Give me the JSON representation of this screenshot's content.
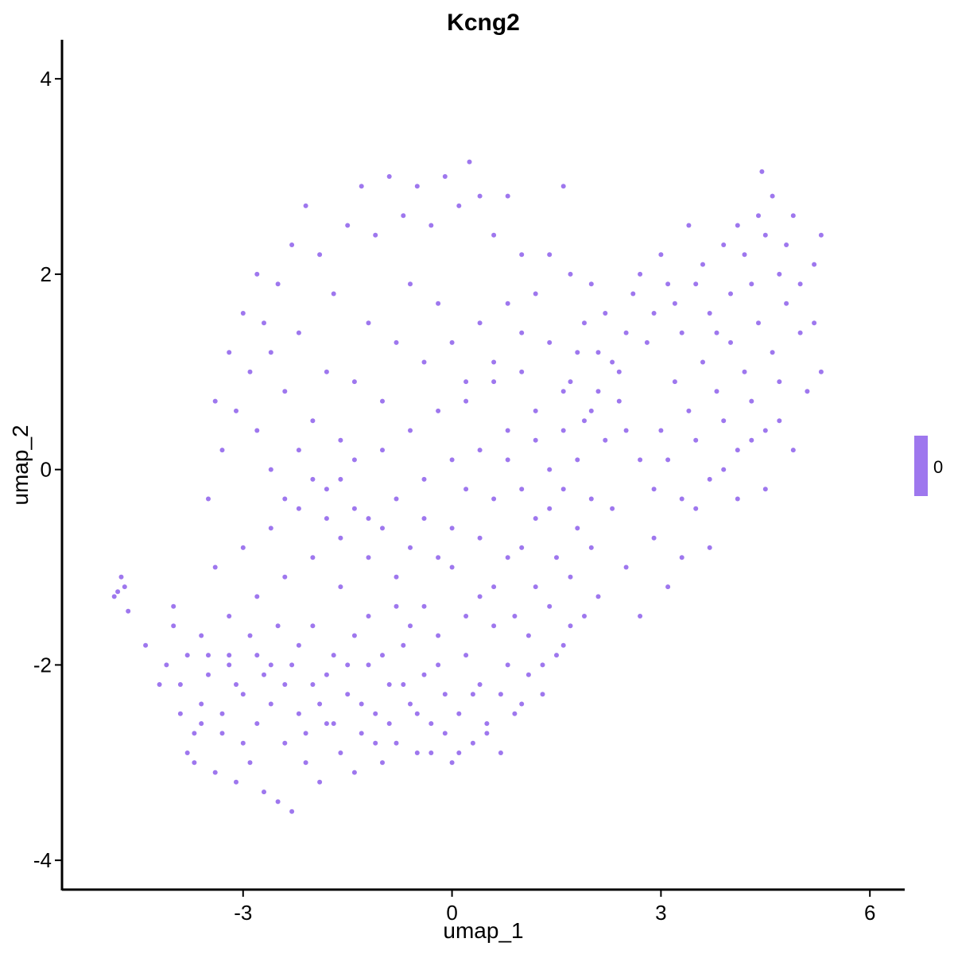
{
  "chart_data": {
    "type": "scatter",
    "title": "Kcng2",
    "xlabel": "umap_1",
    "ylabel": "umap_2",
    "xlim": [
      -5.6,
      6.5
    ],
    "ylim": [
      -4.3,
      4.4
    ],
    "x_ticks": [
      -3,
      0,
      3,
      6
    ],
    "y_ticks": [
      4,
      2,
      0,
      -2,
      -4
    ],
    "x_tick_labels": [
      "-3",
      "0",
      "3",
      "6"
    ],
    "y_tick_labels": [
      "4",
      "2",
      "0",
      "-2",
      "-4"
    ],
    "grid": false,
    "point_color": "#9e77ee",
    "legend": {
      "placement": "right",
      "labels": [
        "0"
      ],
      "color": "#9e77ee"
    },
    "series": [
      {
        "values": [
          [
            -4.8,
            -1.25
          ],
          [
            -4.75,
            -1.1
          ],
          [
            -4.7,
            -1.2
          ],
          [
            -4.65,
            -1.45
          ],
          [
            -4.85,
            -1.3
          ],
          [
            -4.4,
            -1.8
          ],
          [
            -4.2,
            -2.2
          ],
          [
            -4.1,
            -2.0
          ],
          [
            -4.0,
            -1.6
          ],
          [
            -3.9,
            -2.5
          ],
          [
            -3.8,
            -2.9
          ],
          [
            -3.7,
            -3.0
          ],
          [
            -3.6,
            -2.4
          ],
          [
            -3.5,
            -2.1
          ],
          [
            -3.4,
            -3.1
          ],
          [
            -3.3,
            -2.7
          ],
          [
            -3.2,
            -1.9
          ],
          [
            -3.1,
            -3.2
          ],
          [
            -3.0,
            -2.3
          ],
          [
            -2.9,
            -3.0
          ],
          [
            -2.8,
            -2.6
          ],
          [
            -2.7,
            -3.3
          ],
          [
            -2.6,
            -2.0
          ],
          [
            -2.5,
            -3.4
          ],
          [
            -2.4,
            -2.8
          ],
          [
            -2.3,
            -3.5
          ],
          [
            -2.2,
            -2.5
          ],
          [
            -2.1,
            -3.0
          ],
          [
            -2.0,
            -2.2
          ],
          [
            -1.9,
            -3.2
          ],
          [
            -1.8,
            -2.6
          ],
          [
            -1.7,
            -1.9
          ],
          [
            -1.6,
            -2.9
          ],
          [
            -1.5,
            -2.3
          ],
          [
            -1.4,
            -3.1
          ],
          [
            -1.3,
            -2.7
          ],
          [
            -1.2,
            -2.0
          ],
          [
            -1.1,
            -2.5
          ],
          [
            -1.0,
            -3.0
          ],
          [
            -0.9,
            -2.2
          ],
          [
            -0.8,
            -2.8
          ],
          [
            -0.7,
            -1.8
          ],
          [
            -0.6,
            -2.4
          ],
          [
            -0.5,
            -2.9
          ],
          [
            -0.4,
            -2.1
          ],
          [
            -0.3,
            -2.6
          ],
          [
            -0.2,
            -1.7
          ],
          [
            -0.1,
            -2.3
          ],
          [
            0.0,
            -3.0
          ],
          [
            0.1,
            -2.5
          ],
          [
            0.2,
            -1.9
          ],
          [
            0.3,
            -2.8
          ],
          [
            0.4,
            -2.2
          ],
          [
            0.5,
            -2.7
          ],
          [
            0.6,
            -1.6
          ],
          [
            0.7,
            -2.3
          ],
          [
            0.8,
            -2.0
          ],
          [
            0.9,
            -1.5
          ],
          [
            1.0,
            -2.4
          ],
          [
            1.1,
            -1.7
          ],
          [
            1.2,
            -1.2
          ],
          [
            1.3,
            -2.0
          ],
          [
            1.4,
            -1.4
          ],
          [
            1.5,
            -0.9
          ],
          [
            1.6,
            -1.8
          ],
          [
            1.7,
            -1.1
          ],
          [
            1.8,
            -0.6
          ],
          [
            1.9,
            -1.5
          ],
          [
            2.0,
            -0.8
          ],
          [
            2.1,
            -1.3
          ],
          [
            2.3,
            -0.4
          ],
          [
            2.5,
            -1.0
          ],
          [
            2.7,
            -1.5
          ],
          [
            2.9,
            -0.7
          ],
          [
            3.1,
            -1.2
          ],
          [
            3.3,
            -0.9
          ],
          [
            3.5,
            -0.4
          ],
          [
            3.7,
            -0.8
          ],
          [
            3.9,
            0.0
          ],
          [
            4.1,
            -0.3
          ],
          [
            4.3,
            0.3
          ],
          [
            4.5,
            -0.2
          ],
          [
            4.7,
            0.5
          ],
          [
            4.9,
            0.2
          ],
          [
            5.1,
            0.8
          ],
          [
            5.3,
            1.0
          ],
          [
            5.2,
            1.5
          ],
          [
            5.0,
            1.9
          ],
          [
            4.8,
            2.3
          ],
          [
            4.6,
            2.8
          ],
          [
            4.45,
            3.05
          ],
          [
            4.4,
            2.6
          ],
          [
            4.2,
            2.2
          ],
          [
            4.0,
            1.8
          ],
          [
            3.8,
            1.4
          ],
          [
            3.6,
            2.1
          ],
          [
            3.4,
            2.5
          ],
          [
            3.2,
            1.7
          ],
          [
            3.0,
            2.2
          ],
          [
            2.8,
            1.3
          ],
          [
            2.6,
            1.8
          ],
          [
            2.4,
            1.0
          ],
          [
            2.2,
            1.6
          ],
          [
            2.0,
            1.9
          ],
          [
            1.8,
            1.2
          ],
          [
            1.6,
            0.8
          ],
          [
            1.4,
            1.3
          ],
          [
            1.2,
            0.6
          ],
          [
            1.0,
            1.0
          ],
          [
            0.8,
            0.4
          ],
          [
            0.6,
            0.9
          ],
          [
            0.4,
            0.2
          ],
          [
            0.2,
            0.7
          ],
          [
            0.0,
            0.1
          ],
          [
            -0.2,
            0.6
          ],
          [
            -0.4,
            -0.1
          ],
          [
            -0.6,
            0.4
          ],
          [
            -0.8,
            -0.3
          ],
          [
            -1.0,
            0.2
          ],
          [
            -1.2,
            -0.5
          ],
          [
            -1.4,
            0.1
          ],
          [
            -1.6,
            -0.7
          ],
          [
            -1.8,
            -0.2
          ],
          [
            -2.0,
            -0.9
          ],
          [
            -2.2,
            -0.4
          ],
          [
            -2.4,
            -1.1
          ],
          [
            -2.6,
            -0.6
          ],
          [
            -2.8,
            -1.3
          ],
          [
            -3.0,
            -0.8
          ],
          [
            -3.2,
            -1.5
          ],
          [
            -3.4,
            -1.0
          ],
          [
            -3.6,
            -1.7
          ],
          [
            -3.5,
            -0.3
          ],
          [
            -3.3,
            0.2
          ],
          [
            -3.1,
            0.6
          ],
          [
            -2.9,
            1.0
          ],
          [
            -2.7,
            1.5
          ],
          [
            -2.5,
            1.9
          ],
          [
            -2.3,
            2.3
          ],
          [
            -2.1,
            2.7
          ],
          [
            -1.9,
            2.2
          ],
          [
            -1.7,
            1.8
          ],
          [
            -1.5,
            2.5
          ],
          [
            -1.3,
            2.9
          ],
          [
            -1.1,
            2.4
          ],
          [
            -0.9,
            3.0
          ],
          [
            -0.7,
            2.6
          ],
          [
            -0.5,
            2.9
          ],
          [
            -0.3,
            2.5
          ],
          [
            -0.1,
            3.0
          ],
          [
            0.1,
            2.7
          ],
          [
            0.25,
            3.15
          ],
          [
            0.4,
            2.8
          ],
          [
            0.6,
            2.4
          ],
          [
            0.8,
            2.8
          ],
          [
            1.0,
            2.2
          ],
          [
            1.2,
            1.8
          ],
          [
            1.4,
            2.2
          ],
          [
            1.6,
            2.9
          ],
          [
            1.7,
            2.0
          ],
          [
            1.9,
            1.5
          ],
          [
            2.1,
            1.2
          ],
          [
            -2.8,
            2.0
          ],
          [
            -2.6,
            1.2
          ],
          [
            -2.4,
            0.8
          ],
          [
            -2.2,
            1.4
          ],
          [
            -2.0,
            0.5
          ],
          [
            -1.8,
            1.0
          ],
          [
            -1.6,
            0.3
          ],
          [
            -1.4,
            0.9
          ],
          [
            -1.2,
            1.5
          ],
          [
            -1.0,
            0.7
          ],
          [
            -0.8,
            1.3
          ],
          [
            -0.6,
            1.9
          ],
          [
            -0.4,
            1.1
          ],
          [
            -0.2,
            1.7
          ],
          [
            0.0,
            1.3
          ],
          [
            0.2,
            0.9
          ],
          [
            0.4,
            1.5
          ],
          [
            0.6,
            1.1
          ],
          [
            0.8,
            1.7
          ],
          [
            1.0,
            1.4
          ],
          [
            -3.2,
            -2.0
          ],
          [
            -2.8,
            -1.9
          ],
          [
            -2.4,
            -2.2
          ],
          [
            -2.0,
            -1.6
          ],
          [
            -1.6,
            -1.2
          ],
          [
            -1.2,
            -1.5
          ],
          [
            -0.8,
            -1.1
          ],
          [
            -0.4,
            -1.4
          ],
          [
            0.0,
            -1.0
          ],
          [
            0.4,
            -1.3
          ],
          [
            0.8,
            -0.9
          ],
          [
            1.2,
            -0.5
          ],
          [
            1.6,
            -0.2
          ],
          [
            2.0,
            -0.3
          ],
          [
            -3.8,
            -1.9
          ],
          [
            -3.6,
            -2.6
          ],
          [
            -3.0,
            -2.8
          ],
          [
            -2.6,
            -2.4
          ],
          [
            -2.2,
            -1.8
          ],
          [
            -1.8,
            -2.1
          ],
          [
            -1.4,
            -1.7
          ],
          [
            -1.0,
            -1.9
          ],
          [
            -0.6,
            -1.6
          ],
          [
            -0.2,
            -2.0
          ],
          [
            0.2,
            -1.5
          ],
          [
            0.6,
            -1.2
          ],
          [
            1.0,
            -0.8
          ],
          [
            1.4,
            -0.4
          ],
          [
            3.0,
            0.4
          ],
          [
            3.2,
            0.9
          ],
          [
            3.4,
            0.6
          ],
          [
            3.6,
            1.1
          ],
          [
            3.8,
            0.8
          ],
          [
            4.0,
            1.3
          ],
          [
            4.2,
            1.0
          ],
          [
            4.4,
            1.5
          ],
          [
            4.6,
            1.2
          ],
          [
            4.8,
            1.7
          ],
          [
            5.0,
            1.4
          ],
          [
            5.2,
            2.1
          ],
          [
            5.3,
            2.4
          ],
          [
            4.9,
            2.6
          ],
          [
            4.7,
            2.0
          ],
          [
            4.5,
            2.4
          ],
          [
            4.3,
            1.9
          ],
          [
            4.1,
            2.5
          ],
          [
            3.9,
            2.3
          ],
          [
            3.7,
            1.6
          ],
          [
            3.5,
            1.9
          ],
          [
            3.3,
            1.4
          ],
          [
            3.1,
            1.9
          ],
          [
            2.9,
            1.6
          ],
          [
            2.7,
            2.0
          ],
          [
            2.5,
            1.4
          ],
          [
            2.3,
            1.1
          ],
          [
            2.1,
            0.8
          ],
          [
            1.9,
            0.5
          ],
          [
            1.7,
            0.9
          ],
          [
            2.5,
            0.4
          ],
          [
            2.7,
            0.1
          ],
          [
            2.9,
            -0.2
          ],
          [
            3.1,
            0.1
          ],
          [
            3.3,
            -0.3
          ],
          [
            3.5,
            0.3
          ],
          [
            3.7,
            -0.1
          ],
          [
            3.9,
            0.5
          ],
          [
            4.1,
            0.2
          ],
          [
            4.3,
            0.7
          ],
          [
            4.5,
            0.4
          ],
          [
            4.7,
            0.9
          ],
          [
            -3.4,
            0.7
          ],
          [
            -3.2,
            1.2
          ],
          [
            -3.0,
            1.6
          ],
          [
            -2.8,
            0.4
          ],
          [
            -2.6,
            0.0
          ],
          [
            -2.4,
            -0.3
          ],
          [
            -2.2,
            0.2
          ],
          [
            -2.0,
            -0.1
          ],
          [
            -1.8,
            -0.5
          ],
          [
            -1.6,
            -0.1
          ],
          [
            -1.4,
            -0.4
          ],
          [
            -1.2,
            -0.9
          ],
          [
            -1.0,
            -0.6
          ],
          [
            -0.8,
            -1.4
          ],
          [
            -0.6,
            -0.8
          ],
          [
            -0.4,
            -0.5
          ],
          [
            -0.2,
            -0.9
          ],
          [
            0.0,
            -0.6
          ],
          [
            0.2,
            -0.2
          ],
          [
            0.4,
            -0.7
          ],
          [
            0.6,
            -0.3
          ],
          [
            0.8,
            0.1
          ],
          [
            1.0,
            -0.2
          ],
          [
            1.2,
            0.3
          ],
          [
            1.4,
            0.0
          ],
          [
            1.6,
            0.4
          ],
          [
            1.8,
            0.1
          ],
          [
            2.0,
            0.6
          ],
          [
            2.2,
            0.3
          ],
          [
            2.4,
            0.7
          ],
          [
            -4.0,
            -1.4
          ],
          [
            -3.9,
            -2.2
          ],
          [
            -3.7,
            -2.7
          ],
          [
            -3.5,
            -1.9
          ],
          [
            -3.3,
            -2.5
          ],
          [
            -3.1,
            -2.2
          ],
          [
            -2.9,
            -1.7
          ],
          [
            -2.7,
            -2.1
          ],
          [
            -2.5,
            -1.6
          ],
          [
            -2.3,
            -2.0
          ],
          [
            -2.1,
            -2.7
          ],
          [
            -1.9,
            -2.4
          ],
          [
            -1.7,
            -2.6
          ],
          [
            -1.5,
            -2.0
          ],
          [
            -1.3,
            -2.4
          ],
          [
            -1.1,
            -2.8
          ],
          [
            -0.9,
            -2.6
          ],
          [
            -0.7,
            -2.2
          ],
          [
            -0.5,
            -2.5
          ],
          [
            -0.3,
            -2.9
          ],
          [
            -0.1,
            -2.7
          ],
          [
            0.1,
            -2.9
          ],
          [
            0.3,
            -2.3
          ],
          [
            0.5,
            -2.6
          ],
          [
            0.7,
            -2.9
          ],
          [
            0.9,
            -2.5
          ],
          [
            1.1,
            -2.1
          ],
          [
            1.3,
            -2.3
          ],
          [
            1.5,
            -1.9
          ],
          [
            1.7,
            -1.6
          ]
        ]
      }
    ]
  }
}
